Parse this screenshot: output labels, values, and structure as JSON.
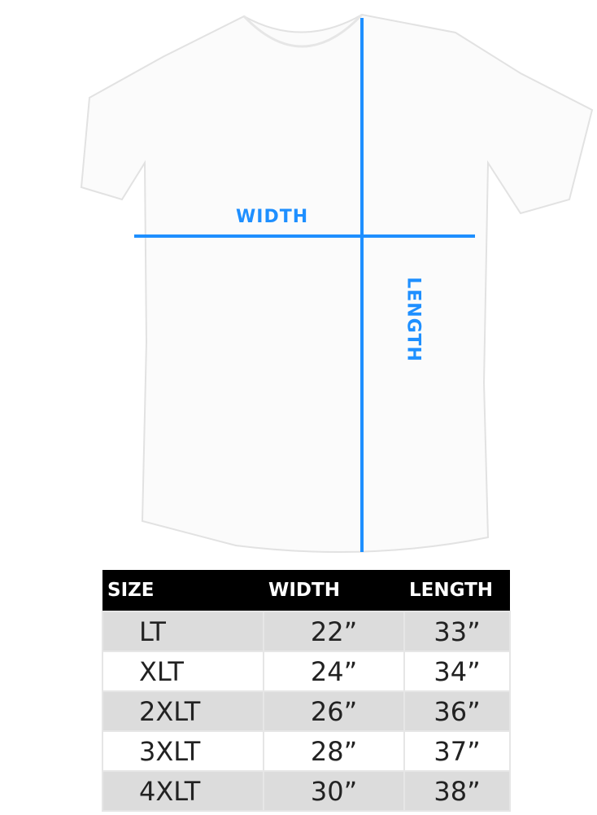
{
  "colors": {
    "measure_line": "#1e8fff",
    "header_bg": "#000000",
    "alt_row": "#dcdcdc"
  },
  "diagram": {
    "width_label": "WIDTH",
    "length_label": "LENGTH"
  },
  "table": {
    "headers": [
      "SIZE",
      "WIDTH",
      "LENGTH"
    ],
    "rows": [
      {
        "size": "LT",
        "width": "22”",
        "length": "33”"
      },
      {
        "size": "XLT",
        "width": "24”",
        "length": "34”"
      },
      {
        "size": "2XLT",
        "width": "26”",
        "length": "36”"
      },
      {
        "size": "3XLT",
        "width": "28”",
        "length": "37”"
      },
      {
        "size": "4XLT",
        "width": "30”",
        "length": "38”"
      }
    ]
  }
}
